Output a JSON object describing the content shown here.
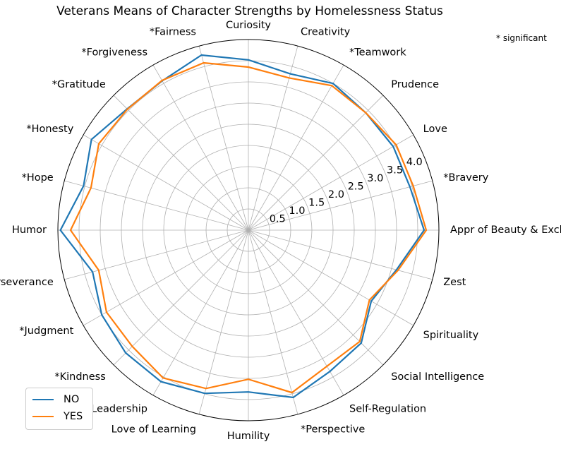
{
  "chart_data": {
    "type": "radar",
    "title": "Veterans Means of Character Strengths by Homelessness Status",
    "note": "* significant",
    "categories": [
      "Appr of Beauty & Excll",
      "*Bravery",
      "Love",
      "Prudence",
      "*Teamwork",
      "Creativity",
      "Curiosity",
      "*Fairness",
      "*Forgiveness",
      "*Gratitude",
      "*Honesty",
      "*Hope",
      "Humor",
      "*Perseverance",
      "*Judgment",
      "*Kindness",
      "Leadership",
      "Love of Learning",
      "Humility",
      "*Perspective",
      "Self-Regulation",
      "Social Intelligence",
      "Spirituality",
      "Zest"
    ],
    "series": [
      {
        "name": "NO",
        "color": "#1f77b4",
        "values": [
          4.15,
          3.95,
          3.95,
          3.92,
          4.0,
          3.82,
          4.02,
          4.28,
          4.07,
          4.05,
          4.28,
          4.03,
          4.44,
          3.81,
          4.0,
          4.1,
          4.13,
          3.99,
          3.82,
          4.09,
          3.85,
          3.77,
          3.35,
          3.62
        ]
      },
      {
        "name": "YES",
        "color": "#ff7f0e",
        "values": [
          4.2,
          4.03,
          4.03,
          3.92,
          3.94,
          3.72,
          3.85,
          4.09,
          4.08,
          4.04,
          4.08,
          3.85,
          4.2,
          3.66,
          3.87,
          3.88,
          4.03,
          3.87,
          3.52,
          3.97,
          3.71,
          3.72,
          3.3,
          3.66
        ]
      }
    ],
    "rlim": [
      0,
      4.5
    ],
    "rticks": [
      0.5,
      1.0,
      1.5,
      2.0,
      2.5,
      3.0,
      3.5,
      4.0
    ],
    "rtick_labels": [
      "0.5",
      "1.0",
      "1.5",
      "2.0",
      "2.5",
      "3.0",
      "3.5",
      "4.0"
    ],
    "grid": true,
    "legend_position": "lower-left"
  }
}
